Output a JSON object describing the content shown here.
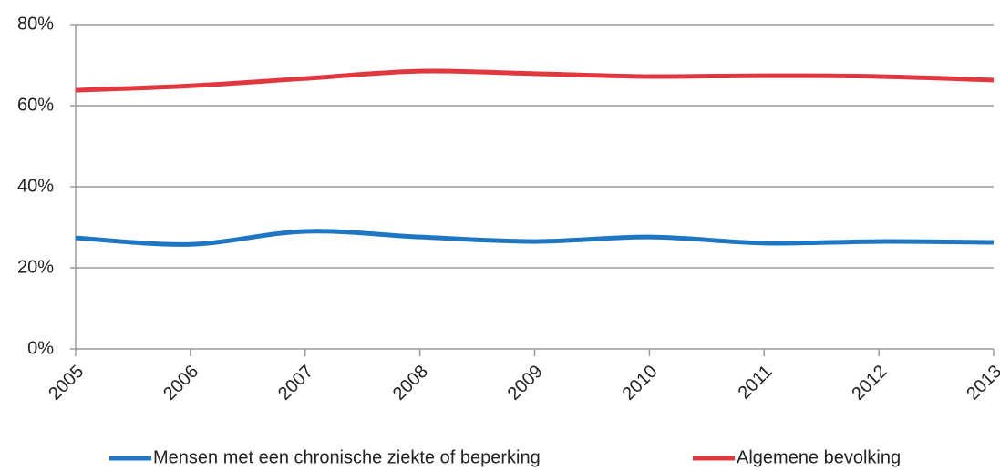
{
  "chart_data": {
    "type": "line",
    "x": [
      2005,
      2006,
      2007,
      2008,
      2009,
      2010,
      2011,
      2012,
      2013
    ],
    "xlim": [
      2005,
      2013
    ],
    "xticks": [
      2005,
      2006,
      2007,
      2008,
      2009,
      2010,
      2011,
      2012,
      2013
    ],
    "ylim": [
      0,
      80
    ],
    "yticks": [
      {
        "value": 0,
        "label": "0%"
      },
      {
        "value": 20,
        "label": "20%"
      },
      {
        "value": 40,
        "label": "40%"
      },
      {
        "value": 60,
        "label": "60%"
      },
      {
        "value": 80,
        "label": "80%"
      }
    ],
    "grid": true,
    "legend": "bottom",
    "series": [
      {
        "name": "Mensen met een chronische ziekte of beperking",
        "color": "#1f77c4",
        "values": [
          27.4,
          25.8,
          29.0,
          27.6,
          26.5,
          27.6,
          26.1,
          26.5,
          26.3
        ]
      },
      {
        "name": "Algemene bevolking",
        "color": "#e0383e",
        "values": [
          63.8,
          64.9,
          66.7,
          68.5,
          67.9,
          67.2,
          67.4,
          67.2,
          66.3
        ]
      }
    ]
  }
}
